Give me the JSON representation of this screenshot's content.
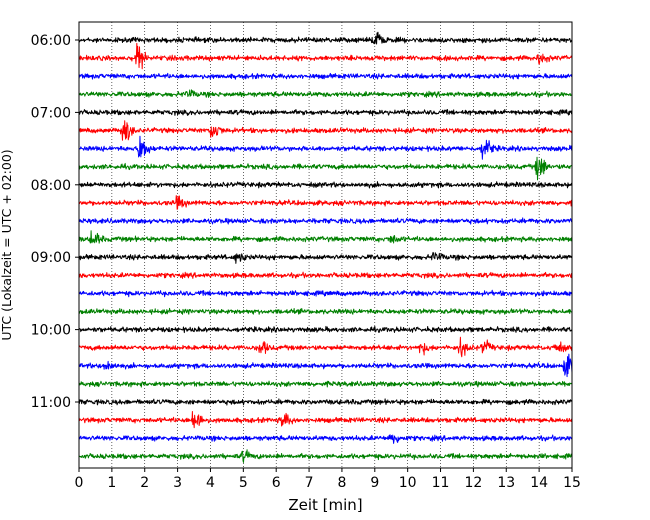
{
  "chart_data": {
    "type": "line",
    "title": "",
    "xlabel": "Zeit  [min]",
    "ylabel": "UTC (Lokalzeit = UTC + 02:00)",
    "xlim": [
      0,
      15
    ],
    "x_ticks": [
      0,
      1,
      2,
      3,
      4,
      5,
      6,
      7,
      8,
      9,
      10,
      11,
      12,
      13,
      14,
      15
    ],
    "x_grid": true,
    "y_tick_labels": [
      "06:00",
      "07:00",
      "08:00",
      "09:00",
      "10:00",
      "11:00"
    ],
    "rows_per_hour": 4,
    "row_minutes": 15,
    "trace_colors": [
      "#000000",
      "#ff0000",
      "#0000ff",
      "#008000"
    ],
    "series": [
      {
        "start": "06:00",
        "color": "#000000",
        "events": [
          {
            "t": 9.0,
            "amp": 1.0
          }
        ]
      },
      {
        "start": "06:15",
        "color": "#ff0000",
        "events": [
          {
            "t": 1.75,
            "amp": 1.6
          },
          {
            "t": 14.0,
            "amp": 0.6
          }
        ]
      },
      {
        "start": "06:30",
        "color": "#0000ff",
        "events": []
      },
      {
        "start": "06:45",
        "color": "#008000",
        "events": [
          {
            "t": 3.3,
            "amp": 0.4
          }
        ]
      },
      {
        "start": "07:00",
        "color": "#000000",
        "events": []
      },
      {
        "start": "07:15",
        "color": "#ff0000",
        "events": [
          {
            "t": 1.35,
            "amp": 1.6
          },
          {
            "t": 4.05,
            "amp": 1.0
          }
        ]
      },
      {
        "start": "07:30",
        "color": "#0000ff",
        "events": [
          {
            "t": 1.85,
            "amp": 1.6
          },
          {
            "t": 12.3,
            "amp": 1.4
          }
        ]
      },
      {
        "start": "07:45",
        "color": "#008000",
        "events": [
          {
            "t": 13.95,
            "amp": 1.6
          }
        ]
      },
      {
        "start": "08:00",
        "color": "#000000",
        "events": []
      },
      {
        "start": "08:15",
        "color": "#ff0000",
        "events": [
          {
            "t": 3.0,
            "amp": 0.6
          }
        ]
      },
      {
        "start": "08:30",
        "color": "#0000ff",
        "events": []
      },
      {
        "start": "08:45",
        "color": "#008000",
        "events": [
          {
            "t": 0.4,
            "amp": 0.8
          },
          {
            "t": 9.5,
            "amp": 0.4
          }
        ]
      },
      {
        "start": "09:00",
        "color": "#000000",
        "events": [
          {
            "t": 4.8,
            "amp": 0.5
          },
          {
            "t": 10.8,
            "amp": 0.5
          }
        ]
      },
      {
        "start": "09:15",
        "color": "#ff0000",
        "events": []
      },
      {
        "start": "09:30",
        "color": "#0000ff",
        "events": []
      },
      {
        "start": "09:45",
        "color": "#008000",
        "events": []
      },
      {
        "start": "10:00",
        "color": "#000000",
        "events": []
      },
      {
        "start": "10:15",
        "color": "#ff0000",
        "events": [
          {
            "t": 5.5,
            "amp": 0.8
          },
          {
            "t": 10.4,
            "amp": 0.6
          },
          {
            "t": 11.6,
            "amp": 0.9
          },
          {
            "t": 12.3,
            "amp": 0.7
          },
          {
            "t": 14.5,
            "amp": 0.6
          }
        ]
      },
      {
        "start": "10:30",
        "color": "#0000ff",
        "events": [
          {
            "t": 0.8,
            "amp": 0.6
          },
          {
            "t": 14.8,
            "amp": 1.3
          }
        ]
      },
      {
        "start": "10:45",
        "color": "#008000",
        "events": []
      },
      {
        "start": "11:00",
        "color": "#000000",
        "events": []
      },
      {
        "start": "11:15",
        "color": "#ff0000",
        "events": [
          {
            "t": 3.5,
            "amp": 1.4
          },
          {
            "t": 6.2,
            "amp": 0.8
          }
        ]
      },
      {
        "start": "11:30",
        "color": "#0000ff",
        "events": [
          {
            "t": 9.5,
            "amp": 0.7
          }
        ]
      },
      {
        "start": "11:45",
        "color": "#008000",
        "events": [
          {
            "t": 5.0,
            "amp": 0.5
          }
        ]
      }
    ]
  }
}
